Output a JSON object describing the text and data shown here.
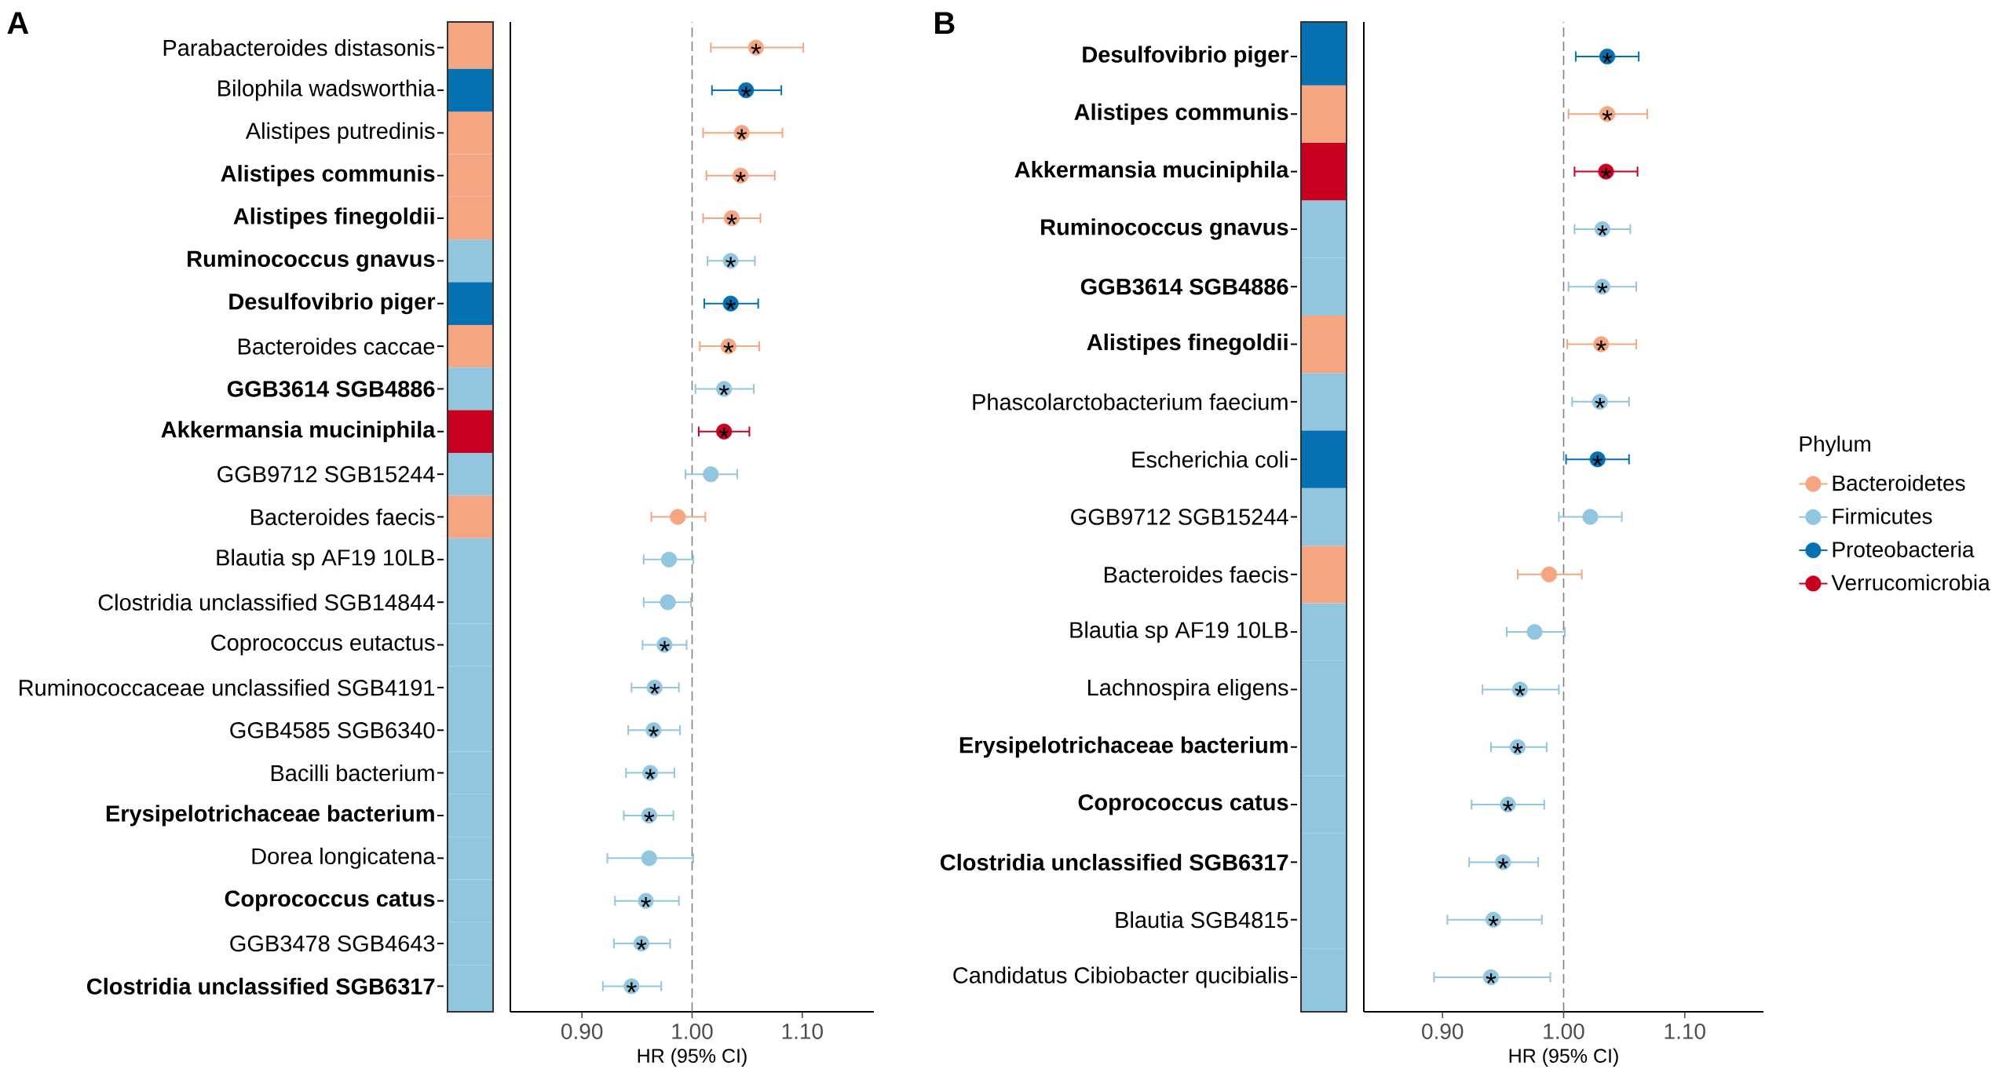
{
  "chart_data": [
    {
      "type": "scatter",
      "title": "A",
      "orientation": "horizontal",
      "categories": [
        "Parabacteroides distasonis",
        "Bilophila wadsworthia",
        "Alistipes putredinis",
        "**Alistipes communis**",
        "**Alistipes finegoldii**",
        "**Ruminococcus gnavus**",
        "**Desulfovibrio piger**",
        "Bacteroides caccae",
        "**GGB3614 SGB4886**",
        "**Akkermansia muciniphila**",
        "GGB9712 SGB15244",
        "Bacteroides faecis",
        "Blautia sp AF19 10LB",
        "Clostridia unclassified SGB14844",
        "Coprococcus eutactus",
        "Ruminococcaceae unclassified SGB4191",
        "GGB4585 SGB6340",
        "Bacilli bacterium",
        "**Erysipelotrichaceae bacterium**",
        "Dorea longicatena",
        "**Coprococcus catus**",
        "GGB3478 SGB4643",
        "**Clostridia unclassified SGB6317**"
      ],
      "series": [
        {
          "color": "#f4a582",
          "values": [
            1.058,
            null,
            1.045,
            1.044,
            1.036,
            null,
            null,
            1.033,
            null,
            null,
            null,
            0.987,
            null,
            null,
            null,
            null,
            null,
            null,
            null,
            null,
            null,
            null,
            null
          ],
          "errors": [
            [
              1.017,
              1.101
            ],
            null,
            [
              1.01,
              1.082
            ],
            [
              1.013,
              1.075
            ],
            [
              1.01,
              1.062
            ],
            null,
            null,
            [
              1.007,
              1.061
            ],
            null,
            null,
            null,
            [
              0.963,
              1.012
            ],
            null,
            null,
            null,
            null,
            null,
            null,
            null,
            null,
            null,
            null,
            null
          ],
          "value_labels": [
            "*",
            null,
            "*",
            "*",
            "*",
            null,
            null,
            "*",
            null,
            null,
            null,
            null,
            null,
            null,
            null,
            null,
            null,
            null,
            null,
            null,
            null,
            null,
            null
          ]
        },
        {
          "color": "#92c5de",
          "values": [
            null,
            null,
            null,
            null,
            null,
            1.035,
            null,
            null,
            1.029,
            null,
            1.017,
            null,
            0.979,
            0.978,
            0.975,
            0.966,
            0.965,
            0.962,
            0.961,
            0.961,
            0.958,
            0.954,
            0.945
          ],
          "errors": [
            null,
            null,
            null,
            null,
            null,
            [
              1.014,
              1.057
            ],
            null,
            null,
            [
              1.003,
              1.056
            ],
            null,
            [
              0.994,
              1.041
            ],
            null,
            [
              0.956,
              1.001
            ],
            [
              0.956,
              0.999
            ],
            [
              0.955,
              0.995
            ],
            [
              0.945,
              0.988
            ],
            [
              0.942,
              0.989
            ],
            [
              0.94,
              0.984
            ],
            [
              0.938,
              0.983
            ],
            [
              0.923,
              1.001
            ],
            [
              0.93,
              0.988
            ],
            [
              0.929,
              0.98
            ],
            [
              0.919,
              0.972
            ]
          ],
          "value_labels": [
            null,
            null,
            null,
            null,
            null,
            "*",
            null,
            null,
            "*",
            null,
            null,
            null,
            null,
            null,
            "*",
            "*",
            "*",
            "*",
            "*",
            null,
            "*",
            "*",
            "*"
          ]
        },
        {
          "color": "#0571b0",
          "values": [
            null,
            1.049,
            null,
            null,
            null,
            null,
            1.035,
            null,
            null,
            null,
            null,
            null,
            null,
            null,
            null,
            null,
            null,
            null,
            null,
            null,
            null,
            null,
            null
          ],
          "errors": [
            null,
            [
              1.018,
              1.081
            ],
            null,
            null,
            null,
            null,
            [
              1.011,
              1.06
            ],
            null,
            null,
            null,
            null,
            null,
            null,
            null,
            null,
            null,
            null,
            null,
            null,
            null,
            null,
            null,
            null
          ],
          "value_labels": [
            null,
            "*",
            null,
            null,
            null,
            null,
            "*",
            null,
            null,
            null,
            null,
            null,
            null,
            null,
            null,
            null,
            null,
            null,
            null,
            null,
            null,
            null,
            null
          ]
        },
        {
          "color": "#ca0020",
          "values": [
            null,
            null,
            null,
            null,
            null,
            null,
            null,
            null,
            null,
            1.029,
            null,
            null,
            null,
            null,
            null,
            null,
            null,
            null,
            null,
            null,
            null,
            null,
            null
          ],
          "errors": [
            null,
            null,
            null,
            null,
            null,
            null,
            null,
            null,
            null,
            [
              1.006,
              1.052
            ],
            null,
            null,
            null,
            null,
            null,
            null,
            null,
            null,
            null,
            null,
            null,
            null,
            null
          ],
          "value_labels": [
            null,
            null,
            null,
            null,
            null,
            null,
            null,
            null,
            null,
            "*",
            null,
            null,
            null,
            null,
            null,
            null,
            null,
            null,
            null,
            null,
            null,
            null,
            null
          ]
        }
      ],
      "xlabel": "HR (95% CI)",
      "xlim": [
        0.835,
        1.165
      ],
      "xticks": [
        {
          "value": 0.9,
          "label": "0.90"
        },
        {
          "value": 1.0,
          "label": "1.00"
        },
        {
          "value": 1.1,
          "label": "1.10"
        }
      ],
      "ref_lines": [
        {
          "axis": "x",
          "value": 1,
          "color": "#808080",
          "line_style": "dashed"
        }
      ],
      "marker": "circle"
    },
    {
      "type": "scatter",
      "title": "B",
      "orientation": "horizontal",
      "categories": [
        "**Desulfovibrio piger**",
        "**Alistipes communis**",
        "**Akkermansia muciniphila**",
        "**Ruminococcus gnavus**",
        "**GGB3614 SGB4886**",
        "**Alistipes finegoldii**",
        "Phascolarctobacterium faecium",
        "Escherichia coli",
        "GGB9712 SGB15244",
        "Bacteroides faecis",
        "Blautia sp AF19 10LB",
        "Lachnospira eligens",
        "**Erysipelotrichaceae bacterium**",
        "**Coprococcus catus**",
        "**Clostridia unclassified SGB6317**",
        "Blautia SGB4815",
        "Candidatus Cibiobacter qucibialis"
      ],
      "series": [
        {
          "name": "Bacteroidetes",
          "color": "#f4a582",
          "values": [
            null,
            1.036,
            null,
            null,
            null,
            1.031,
            null,
            null,
            null,
            0.988,
            null,
            null,
            null,
            null,
            null,
            null,
            null
          ],
          "errors": [
            null,
            [
              1.004,
              1.069
            ],
            null,
            null,
            null,
            [
              1.003,
              1.06
            ],
            null,
            null,
            null,
            [
              0.962,
              1.015
            ],
            null,
            null,
            null,
            null,
            null,
            null,
            null
          ],
          "value_labels": [
            null,
            "*",
            null,
            null,
            null,
            "*",
            null,
            null,
            null,
            null,
            null,
            null,
            null,
            null,
            null,
            null,
            null
          ]
        },
        {
          "name": "Firmicutes",
          "color": "#92c5de",
          "values": [
            null,
            null,
            null,
            1.032,
            1.032,
            null,
            1.03,
            null,
            1.022,
            null,
            0.976,
            0.964,
            0.962,
            0.954,
            0.95,
            0.942,
            0.94
          ],
          "errors": [
            null,
            null,
            null,
            [
              1.009,
              1.055
            ],
            [
              1.004,
              1.06
            ],
            null,
            [
              1.007,
              1.054
            ],
            null,
            [
              0.996,
              1.048
            ],
            null,
            [
              0.953,
              1.001
            ],
            [
              0.933,
              0.996
            ],
            [
              0.94,
              0.986
            ],
            [
              0.924,
              0.984
            ],
            [
              0.922,
              0.979
            ],
            [
              0.904,
              0.982
            ],
            [
              0.893,
              0.989
            ]
          ],
          "value_labels": [
            null,
            null,
            null,
            "*",
            "*",
            null,
            "*",
            null,
            null,
            null,
            null,
            "*",
            "*",
            "*",
            "*",
            "*",
            "*"
          ]
        },
        {
          "name": "Proteobacteria",
          "color": "#0571b0",
          "values": [
            1.036,
            null,
            null,
            null,
            null,
            null,
            null,
            1.028,
            null,
            null,
            null,
            null,
            null,
            null,
            null,
            null,
            null
          ],
          "errors": [
            [
              1.01,
              1.062
            ],
            null,
            null,
            null,
            null,
            null,
            null,
            [
              1.002,
              1.054
            ],
            null,
            null,
            null,
            null,
            null,
            null,
            null,
            null,
            null
          ],
          "value_labels": [
            "*",
            null,
            null,
            null,
            null,
            null,
            null,
            "*",
            null,
            null,
            null,
            null,
            null,
            null,
            null,
            null,
            null
          ]
        },
        {
          "name": "Verrucomicrobia",
          "color": "#ca0020",
          "values": [
            null,
            null,
            1.035,
            null,
            null,
            null,
            null,
            null,
            null,
            null,
            null,
            null,
            null,
            null,
            null,
            null,
            null
          ],
          "errors": [
            null,
            null,
            [
              1.009,
              1.061
            ],
            null,
            null,
            null,
            null,
            null,
            null,
            null,
            null,
            null,
            null,
            null,
            null,
            null,
            null
          ],
          "value_labels": [
            null,
            null,
            "*",
            null,
            null,
            null,
            null,
            null,
            null,
            null,
            null,
            null,
            null,
            null,
            null,
            null,
            null
          ]
        }
      ],
      "xlabel": "HR (95% CI)",
      "xlim": [
        0.835,
        1.165
      ],
      "xticks": [
        {
          "value": 0.9,
          "label": "0.90"
        },
        {
          "value": 1.0,
          "label": "1.00"
        },
        {
          "value": 1.1,
          "label": "1.10"
        }
      ],
      "ref_lines": [
        {
          "axis": "x",
          "value": 1,
          "color": "#808080",
          "line_style": "dashed"
        }
      ],
      "marker": "circle",
      "legend": "right",
      "legend_title": "Phylum"
    }
  ]
}
